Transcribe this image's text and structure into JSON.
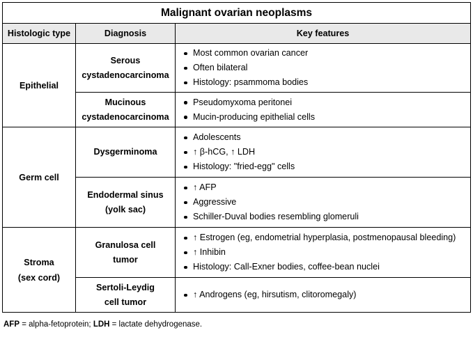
{
  "title": "Malignant ovarian neoplasms",
  "headers": {
    "type": "Histologic type",
    "diagnosis": "Diagnosis",
    "features": "Key features"
  },
  "groups": [
    {
      "type_lines": [
        "Epithelial"
      ],
      "rows": [
        {
          "diagnosis_lines": [
            "Serous",
            "cystadenocarcinoma"
          ],
          "features": [
            "Most common ovarian cancer",
            "Often bilateral",
            "Histology: psammoma bodies"
          ]
        },
        {
          "diagnosis_lines": [
            "Mucinous",
            "cystadenocarcinoma"
          ],
          "features": [
            "Pseudomyxoma peritonei",
            "Mucin-producing epithelial cells"
          ]
        }
      ]
    },
    {
      "type_lines": [
        "Germ cell"
      ],
      "rows": [
        {
          "diagnosis_lines": [
            "Dysgerminoma"
          ],
          "features": [
            "Adolescents",
            "↑ β-hCG, ↑ LDH",
            "Histology: \"fried-egg\" cells"
          ]
        },
        {
          "diagnosis_lines": [
            "Endodermal sinus",
            "(yolk sac)"
          ],
          "features": [
            "↑ AFP",
            "Aggressive",
            "Schiller-Duval bodies resembling glomeruli"
          ]
        }
      ]
    },
    {
      "type_lines": [
        "Stroma",
        "(sex cord)"
      ],
      "rows": [
        {
          "diagnosis_lines": [
            "Granulosa cell",
            "tumor"
          ],
          "features": [
            "↑ Estrogen (eg, endometrial hyperplasia, postmenopausal bleeding)",
            "↑ Inhibin",
            "Histology: Call-Exner bodies, coffee-bean nuclei"
          ]
        },
        {
          "diagnosis_lines": [
            "Sertoli-Leydig",
            "cell tumor"
          ],
          "features": [
            "↑ Androgens (eg, hirsutism, clitoromegaly)"
          ]
        }
      ]
    }
  ],
  "footnote": {
    "abbr1": "AFP",
    "def1": " = alpha-fetoprotein; ",
    "abbr2": "LDH",
    "def2": " = lactate dehydrogenase."
  }
}
